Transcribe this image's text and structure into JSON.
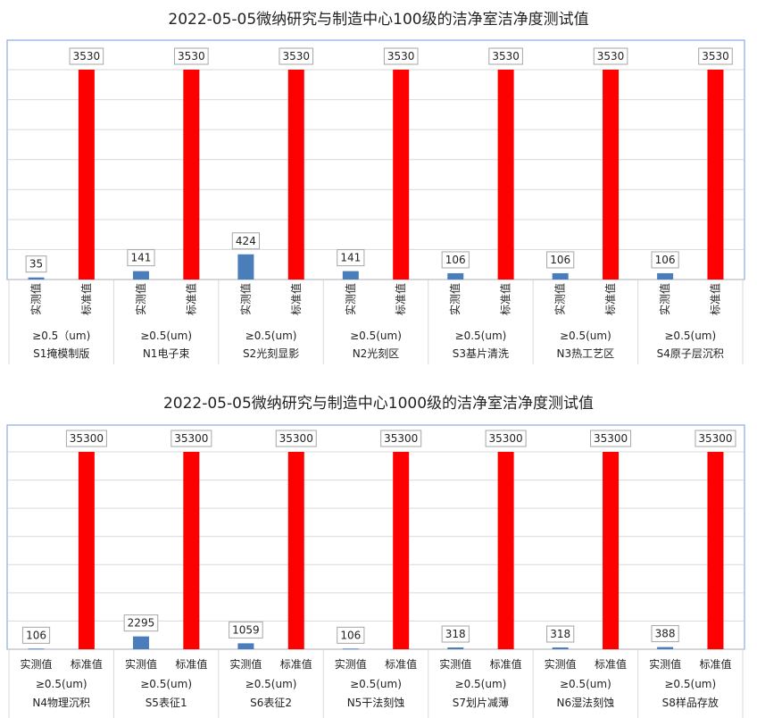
{
  "chart_data": [
    {
      "type": "bar",
      "title": "2022-05-05微纳研究与制造中心100级的洁净室洁净度测试值",
      "series_labels": [
        "实测值",
        "标准值"
      ],
      "vertical_category_labels": true,
      "colors": {
        "measured": "#4a7ebb",
        "standard": "#ff0000"
      },
      "ylim": [
        0,
        3530
      ],
      "categories": [
        {
          "size": "≥0.5（um)",
          "name": "S1掩模制版"
        },
        {
          "size": "≥0.5(um)",
          "name": "N1电子束"
        },
        {
          "size": "≥0.5(um)",
          "name": "S2光刻显影"
        },
        {
          "size": "≥0.5(um)",
          "name": "N2光刻区"
        },
        {
          "size": "≥0.5(um)",
          "name": "S3基片清洗"
        },
        {
          "size": "≥0.5(um)",
          "name": "N3热工艺区"
        },
        {
          "size": "≥0.5(um)",
          "name": "S4原子层沉积"
        }
      ],
      "series": [
        {
          "name": "实测值",
          "values": [
            35,
            141,
            424,
            141,
            106,
            106,
            106
          ]
        },
        {
          "name": "标准值",
          "values": [
            3530,
            3530,
            3530,
            3530,
            3530,
            3530,
            3530
          ]
        }
      ]
    },
    {
      "type": "bar",
      "title": "2022-05-05微纳研究与制造中心1000级的洁净室洁净度测试值",
      "series_labels": [
        "实测值",
        "标准值"
      ],
      "vertical_category_labels": false,
      "colors": {
        "measured": "#4a7ebb",
        "standard": "#ff0000"
      },
      "ylim": [
        0,
        35300
      ],
      "categories": [
        {
          "size": "≥0.5(um)",
          "name": "N4物理沉积"
        },
        {
          "size": "≥0.5(um)",
          "name": "S5表征1"
        },
        {
          "size": "≥0.5(um)",
          "name": "S6表征2"
        },
        {
          "size": "≥0.5(um)",
          "name": "N5干法刻蚀"
        },
        {
          "size": "≥0.5(um)",
          "name": "S7划片减薄"
        },
        {
          "size": "≥0.5(um)",
          "name": "N6湿法刻蚀"
        },
        {
          "size": "≥0.5(um)",
          "name": "S8样品存放"
        }
      ],
      "series": [
        {
          "name": "实测值",
          "values": [
            106,
            2295,
            1059,
            106,
            318,
            318,
            388
          ]
        },
        {
          "name": "标准值",
          "values": [
            35300,
            35300,
            35300,
            35300,
            35300,
            35300,
            35300
          ]
        }
      ]
    }
  ]
}
